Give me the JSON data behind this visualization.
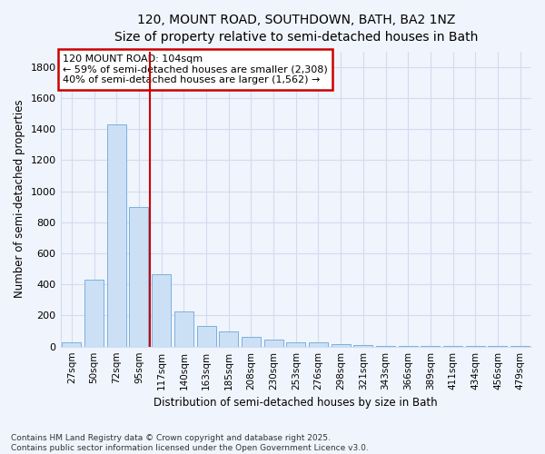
{
  "title_line1": "120, MOUNT ROAD, SOUTHDOWN, BATH, BA2 1NZ",
  "title_line2": "Size of property relative to semi-detached houses in Bath",
  "xlabel": "Distribution of semi-detached houses by size in Bath",
  "ylabel": "Number of semi-detached properties",
  "categories": [
    "27sqm",
    "50sqm",
    "72sqm",
    "95sqm",
    "117sqm",
    "140sqm",
    "163sqm",
    "185sqm",
    "208sqm",
    "230sqm",
    "253sqm",
    "276sqm",
    "298sqm",
    "321sqm",
    "343sqm",
    "366sqm",
    "389sqm",
    "411sqm",
    "434sqm",
    "456sqm",
    "479sqm"
  ],
  "values": [
    30,
    430,
    1430,
    900,
    465,
    225,
    135,
    95,
    60,
    45,
    30,
    25,
    15,
    10,
    5,
    5,
    3,
    2,
    2,
    2,
    2
  ],
  "bar_color": "#cce0f5",
  "bar_edge_color": "#7ab0de",
  "property_line_x": 3.5,
  "property_label": "120 MOUNT ROAD: 104sqm",
  "annotation_line1": "← 59% of semi-detached houses are smaller (2,308)",
  "annotation_line2": "40% of semi-detached houses are larger (1,562) →",
  "annotation_box_color": "#ffffff",
  "annotation_box_edge": "#cc0000",
  "vline_color": "#cc0000",
  "ylim": [
    0,
    1900
  ],
  "yticks": [
    0,
    200,
    400,
    600,
    800,
    1000,
    1200,
    1400,
    1600,
    1800
  ],
  "footer_line1": "Contains HM Land Registry data © Crown copyright and database right 2025.",
  "footer_line2": "Contains public sector information licensed under the Open Government Licence v3.0.",
  "bg_color": "#f0f4fc",
  "plot_bg_color": "#f0f4fc",
  "grid_color": "#d0ddf0"
}
